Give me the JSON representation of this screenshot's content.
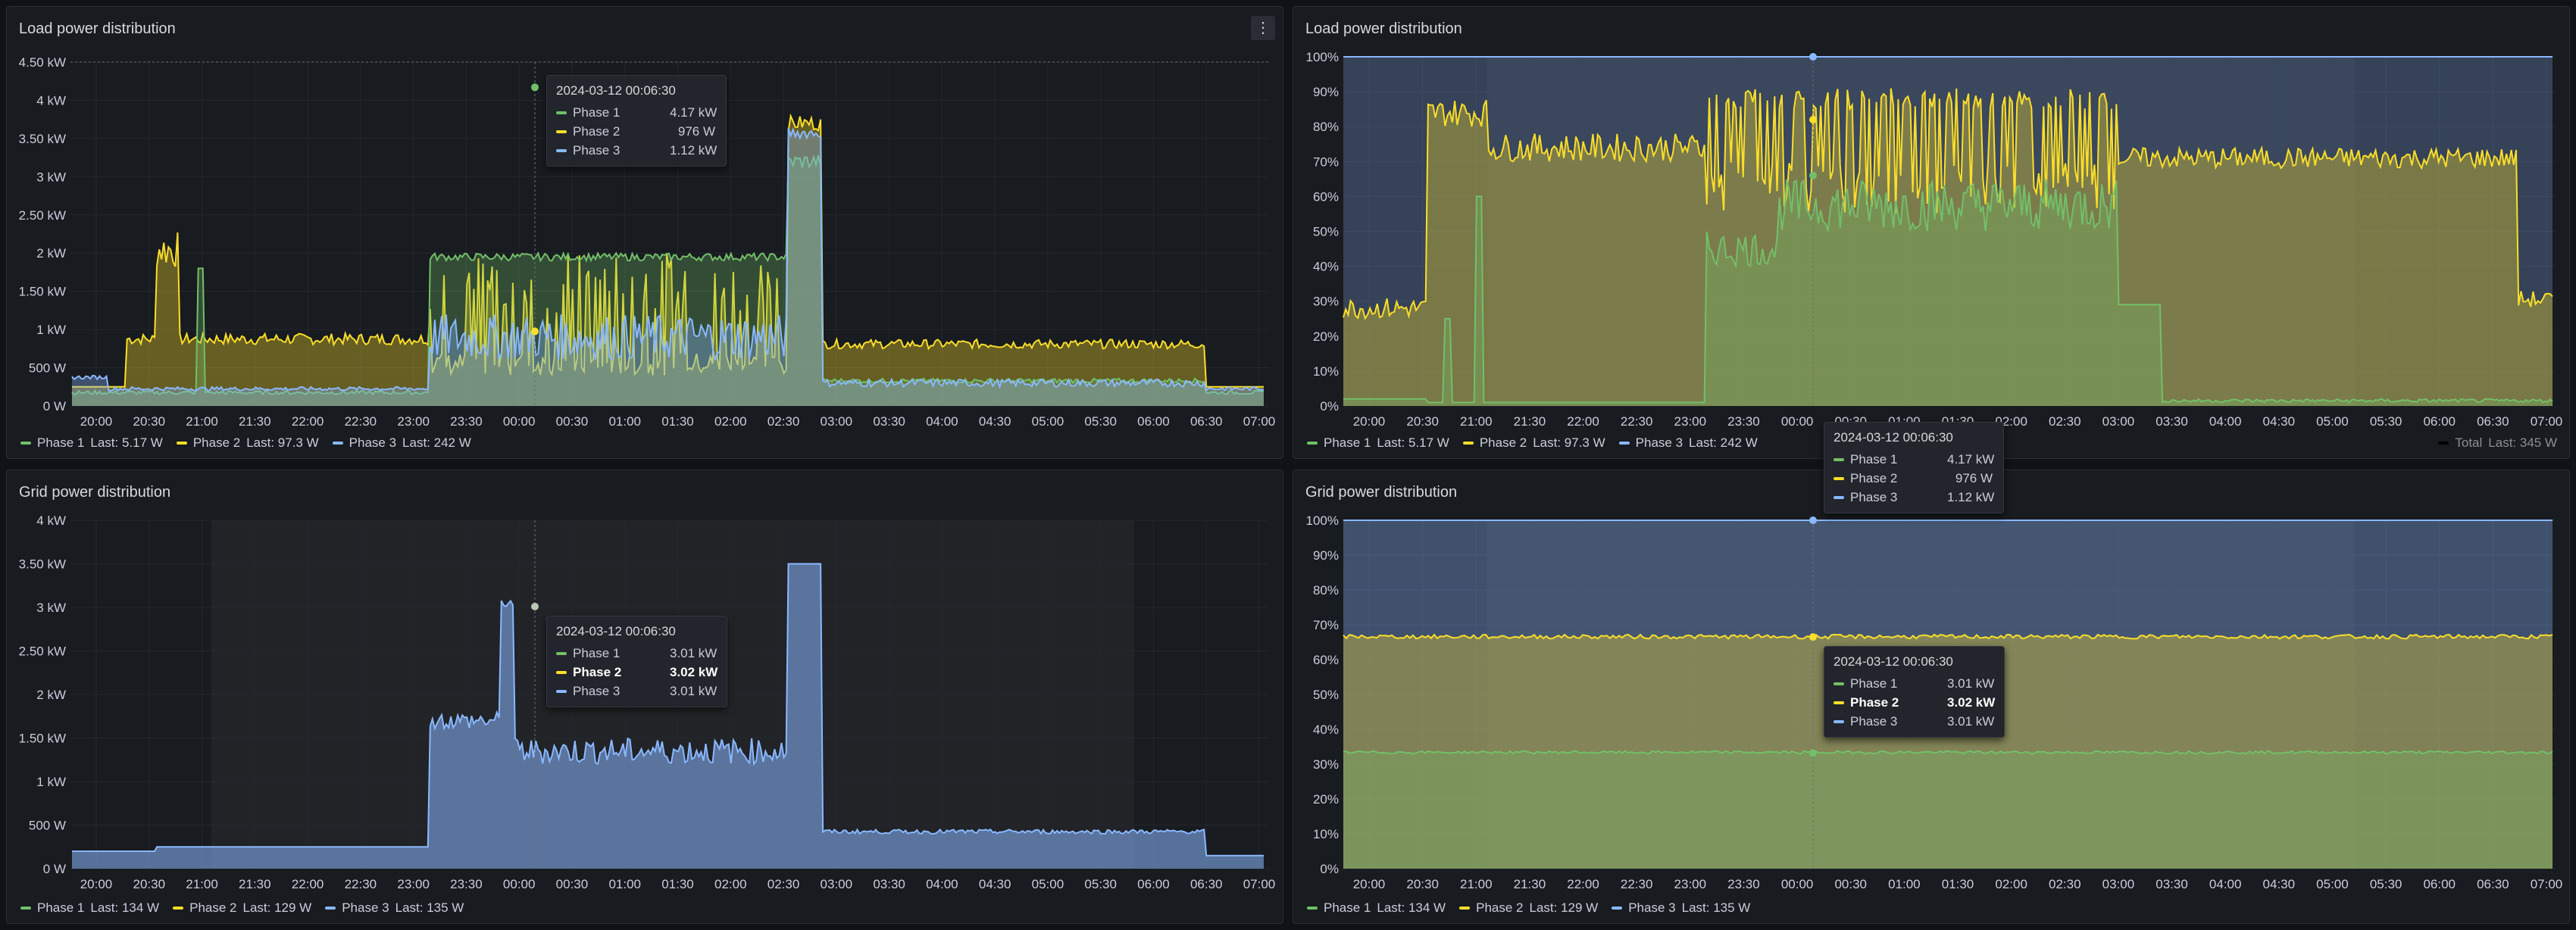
{
  "colors": {
    "phase1": "#73bf69",
    "phase2": "#fade2a",
    "phase3": "#8ab8ff",
    "total": "#000000"
  },
  "time_labels": [
    "20:00",
    "20:30",
    "21:00",
    "21:30",
    "22:00",
    "22:30",
    "23:00",
    "23:30",
    "00:00",
    "00:30",
    "01:00",
    "01:30",
    "02:00",
    "02:30",
    "03:00",
    "03:30",
    "04:00",
    "04:30",
    "05:00",
    "05:30",
    "06:00",
    "06:30",
    "07:00"
  ],
  "panels": [
    {
      "title": "Load power distribution",
      "yticks": [
        "0 W",
        "500 W",
        "1 kW",
        "1.50 kW",
        "2 kW",
        "2.50 kW",
        "3 kW",
        "3.50 kW",
        "4 kW",
        "4.50 kW"
      ],
      "legend": [
        {
          "label": "Phase 1",
          "last": "Last: 5.17 W"
        },
        {
          "label": "Phase 2",
          "last": "Last: 97.3 W"
        },
        {
          "label": "Phase 3",
          "last": "Last: 242 W"
        }
      ],
      "tooltip": {
        "time": "2024-03-12 00:06:30",
        "rows": [
          {
            "name": "Phase 1",
            "value": "4.17 kW"
          },
          {
            "name": "Phase 2",
            "value": "976 W"
          },
          {
            "name": "Phase 3",
            "value": "1.12 kW"
          }
        ]
      }
    },
    {
      "title": "Load power distribution",
      "yticks": [
        "0%",
        "10%",
        "20%",
        "30%",
        "40%",
        "50%",
        "60%",
        "70%",
        "80%",
        "90%",
        "100%"
      ],
      "legend": [
        {
          "label": "Phase 1",
          "last": "Last: 5.17 W"
        },
        {
          "label": "Phase 2",
          "last": "Last: 97.3 W"
        },
        {
          "label": "Phase 3",
          "last": "Last: 242 W"
        }
      ],
      "legend_right": {
        "label": "Total",
        "last": "Last: 345 W"
      },
      "tooltip": {
        "time": "2024-03-12 00:06:30",
        "rows": [
          {
            "name": "Phase 1",
            "value": "4.17 kW"
          },
          {
            "name": "Phase 2",
            "value": "976 W"
          },
          {
            "name": "Phase 3",
            "value": "1.12 kW"
          }
        ]
      }
    },
    {
      "title": "Grid power distribution",
      "yticks": [
        "0 W",
        "500 W",
        "1 kW",
        "1.50 kW",
        "2 kW",
        "2.50 kW",
        "3 kW",
        "3.50 kW",
        "4 kW"
      ],
      "legend": [
        {
          "label": "Phase 1",
          "last": "Last: 134 W"
        },
        {
          "label": "Phase 2",
          "last": "Last: 129 W"
        },
        {
          "label": "Phase 3",
          "last": "Last: 135 W"
        }
      ],
      "tooltip": {
        "time": "2024-03-12 00:06:30",
        "rows": [
          {
            "name": "Phase 1",
            "value": "3.01 kW"
          },
          {
            "name": "Phase 2",
            "value": "3.02 kW",
            "bold": true
          },
          {
            "name": "Phase 3",
            "value": "3.01 kW"
          }
        ]
      }
    },
    {
      "title": "Grid power distribution",
      "yticks": [
        "0%",
        "10%",
        "20%",
        "30%",
        "40%",
        "50%",
        "60%",
        "70%",
        "80%",
        "90%",
        "100%"
      ],
      "legend": [
        {
          "label": "Phase 1",
          "last": "Last: 134 W"
        },
        {
          "label": "Phase 2",
          "last": "Last: 129 W"
        },
        {
          "label": "Phase 3",
          "last": "Last: 135 W"
        }
      ],
      "tooltip": {
        "time": "2024-03-12 00:06:30",
        "rows": [
          {
            "name": "Phase 1",
            "value": "3.01 kW"
          },
          {
            "name": "Phase 2",
            "value": "3.02 kW",
            "bold": true
          },
          {
            "name": "Phase 3",
            "value": "3.01 kW"
          }
        ]
      }
    }
  ]
}
